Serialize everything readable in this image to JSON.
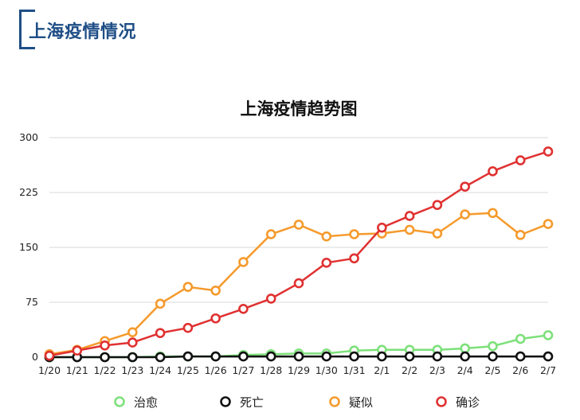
{
  "header": {
    "title": "上海疫情情况"
  },
  "colors": {
    "header": "#1f4e86",
    "cured": "#7de07a",
    "death": "#111111",
    "suspected": "#f59a2c",
    "confirmed": "#e03131",
    "grid": "#d8d8d8"
  },
  "chart_data": {
    "type": "line",
    "title": "上海疫情趋势图",
    "xlabel": "",
    "ylabel": "",
    "ylim": [
      0,
      300
    ],
    "yticks": [
      0,
      75,
      150,
      225,
      300
    ],
    "grid": true,
    "legend": "bottom",
    "categories": [
      "1/20",
      "1/21",
      "1/22",
      "1/23",
      "1/24",
      "1/25",
      "1/26",
      "1/27",
      "1/28",
      "1/29",
      "1/30",
      "1/31",
      "2/1",
      "2/2",
      "2/3",
      "2/4",
      "2/5",
      "2/6",
      "2/7"
    ],
    "series": [
      {
        "name": "治愈",
        "color": "#7de07a",
        "values": [
          0,
          0,
          0,
          0,
          1,
          1,
          1,
          3,
          4,
          5,
          5,
          9,
          10,
          10,
          10,
          12,
          15,
          25,
          30
        ]
      },
      {
        "name": "死亡",
        "color": "#111111",
        "values": [
          0,
          0,
          0,
          0,
          0,
          1,
          1,
          1,
          1,
          1,
          1,
          1,
          1,
          1,
          1,
          1,
          1,
          1,
          1
        ]
      },
      {
        "name": "疑似",
        "color": "#f59a2c",
        "values": [
          4,
          10,
          22,
          34,
          73,
          96,
          91,
          130,
          168,
          181,
          165,
          168,
          169,
          174,
          169,
          195,
          197,
          167,
          182
        ]
      },
      {
        "name": "确诊",
        "color": "#e03131",
        "values": [
          2,
          9,
          16,
          20,
          33,
          40,
          53,
          66,
          80,
          101,
          129,
          135,
          177,
          193,
          208,
          233,
          254,
          269,
          281
        ]
      }
    ]
  }
}
